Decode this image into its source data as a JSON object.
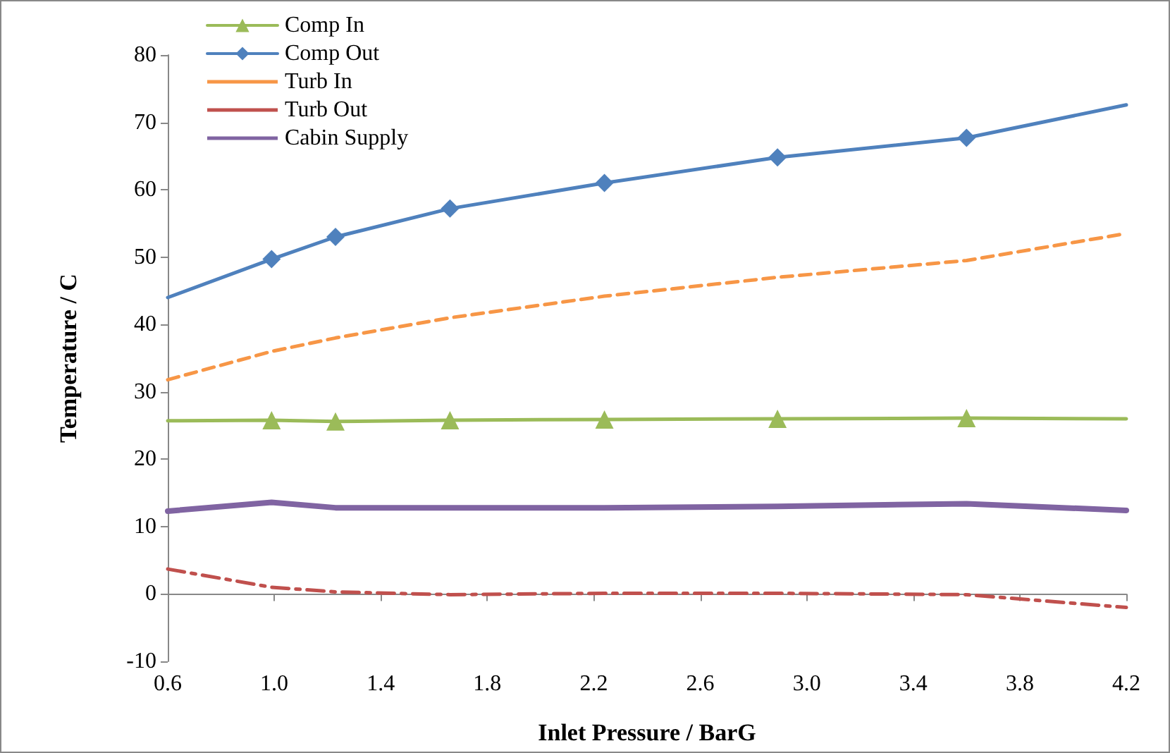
{
  "chart_data": {
    "type": "line",
    "xlabel": "Inlet Pressure / BarG",
    "ylabel": "Temperature / C",
    "x": [
      0.6,
      0.99,
      1.23,
      1.66,
      2.24,
      2.89,
      3.6,
      4.2
    ],
    "series": [
      {
        "name": "Comp In",
        "color": "#9bbb59",
        "marker": "triangle",
        "line_style": "solid",
        "values": [
          25.7,
          25.8,
          25.6,
          25.8,
          25.9,
          26.0,
          26.1,
          26.0
        ]
      },
      {
        "name": "Comp Out",
        "color": "#4f81bd",
        "marker": "diamond",
        "line_style": "solid",
        "values": [
          44.0,
          49.7,
          53.0,
          57.2,
          61.0,
          64.8,
          67.7,
          72.6
        ]
      },
      {
        "name": "Turb In",
        "color": "#f79646",
        "marker": "none",
        "line_style": "dashed",
        "values": [
          31.8,
          36.0,
          38.0,
          41.0,
          44.2,
          47.0,
          49.5,
          53.5
        ]
      },
      {
        "name": "Turb Out",
        "color": "#c0504d",
        "marker": "none",
        "line_style": "dashdot",
        "values": [
          3.7,
          1.0,
          0.3,
          -0.1,
          0.1,
          0.1,
          -0.1,
          -2.0
        ]
      },
      {
        "name": "Cabin Supply",
        "color": "#8064a2",
        "marker": "none",
        "line_style": "solid",
        "values": [
          12.3,
          13.6,
          12.8,
          12.8,
          12.8,
          13.0,
          13.4,
          12.4
        ]
      }
    ],
    "xlim": [
      0.6,
      4.2
    ],
    "xticks": [
      0.6,
      {
        "value": 1,
        "label": "1.0"
      },
      1.4,
      1.8,
      2.2,
      2.6,
      {
        "value": 3,
        "label": "3.0"
      },
      3.4,
      3.8,
      4.2
    ],
    "ylim": [
      -10,
      80
    ],
    "yticks": [
      -10,
      0,
      10,
      20,
      30,
      40,
      50,
      60,
      70,
      80
    ],
    "legend": "top left"
  }
}
